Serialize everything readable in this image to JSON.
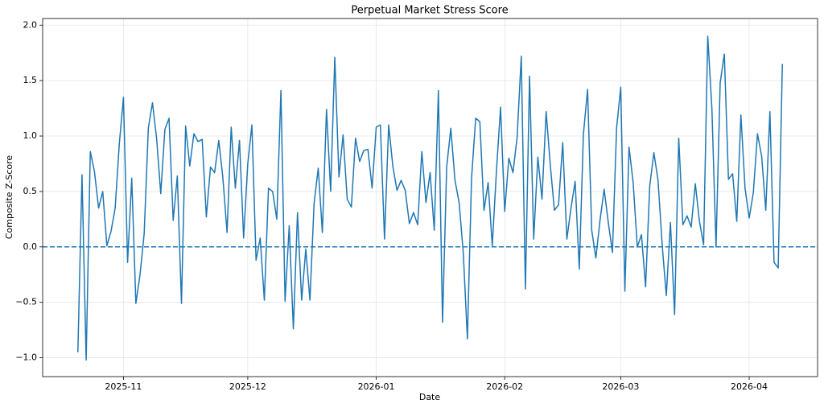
{
  "chart_data": {
    "type": "line",
    "title": "Perpetual Market Stress Score",
    "xlabel": "Date",
    "ylabel": "Composite Z-Score",
    "color": "#1f77b4",
    "values": [
      -0.95,
      0.65,
      -1.02,
      0.86,
      0.68,
      0.35,
      0.5,
      0.01,
      0.14,
      0.35,
      0.93,
      1.35,
      -0.14,
      0.62,
      -0.51,
      -0.25,
      0.12,
      1.07,
      1.3,
      0.98,
      0.48,
      1.06,
      1.16,
      0.24,
      0.64,
      -0.51,
      1.09,
      0.73,
      1.02,
      0.95,
      0.97,
      0.27,
      0.72,
      0.67,
      0.96,
      0.62,
      0.13,
      1.08,
      0.53,
      0.96,
      0.08,
      0.75,
      1.1,
      -0.12,
      0.08,
      -0.48,
      0.53,
      0.5,
      0.25,
      1.41,
      -0.49,
      0.19,
      -0.74,
      0.31,
      -0.48,
      -0.02,
      -0.48,
      0.39,
      0.71,
      0.13,
      1.24,
      0.5,
      1.71,
      0.63,
      1.01,
      0.43,
      0.36,
      0.98,
      0.77,
      0.87,
      0.88,
      0.53,
      1.08,
      1.1,
      0.07,
      1.1,
      0.73,
      0.51,
      0.6,
      0.51,
      0.21,
      0.31,
      0.2,
      0.86,
      0.4,
      0.67,
      0.15,
      1.41,
      -0.68,
      0.72,
      1.07,
      0.6,
      0.4,
      -0.05,
      -0.83,
      0.62,
      1.16,
      1.13,
      0.33,
      0.58,
      0.01,
      0.68,
      1.26,
      0.32,
      0.8,
      0.67,
      0.99,
      1.72,
      -0.38,
      1.54,
      0.07,
      0.81,
      0.43,
      1.22,
      0.74,
      0.33,
      0.38,
      0.94,
      0.07,
      0.35,
      0.59,
      -0.2,
      1.02,
      1.42,
      0.15,
      -0.1,
      0.24,
      0.52,
      0.22,
      -0.05,
      1.07,
      1.44,
      -0.4,
      0.9,
      0.58,
      0.0,
      0.11,
      -0.36,
      0.55,
      0.85,
      0.6,
      0.02,
      -0.44,
      0.22,
      -0.61,
      0.98,
      0.2,
      0.28,
      0.18,
      0.57,
      0.23,
      0.02,
      1.9,
      1.25,
      0.0,
      1.48,
      1.74,
      0.61,
      0.66,
      0.23,
      1.19,
      0.53,
      0.26,
      0.49,
      1.02,
      0.82,
      0.33,
      1.22,
      -0.14,
      -0.19,
      1.65
    ],
    "xlim": [
      -8.5,
      178.5
    ],
    "xticks": [
      {
        "value": 11,
        "label": "2025-11"
      },
      {
        "value": 41,
        "label": "2025-12"
      },
      {
        "value": 72,
        "label": "2026-01"
      },
      {
        "value": 103,
        "label": "2026-02"
      },
      {
        "value": 131,
        "label": "2026-03"
      },
      {
        "value": 162,
        "label": "2026-04"
      }
    ],
    "ylim": [
      -1.17,
      2.06
    ],
    "yticks": [
      {
        "value": -1,
        "label": "−1.0"
      },
      {
        "value": -0.5,
        "label": "−0.5"
      },
      {
        "value": 0,
        "label": "0.0"
      },
      {
        "value": 0.5,
        "label": "0.5"
      },
      {
        "value": 1,
        "label": "1.0"
      },
      {
        "value": 1.5,
        "label": "1.5"
      },
      {
        "value": 2,
        "label": "2.0"
      }
    ],
    "hline": {
      "y": 0,
      "style": "dashed"
    },
    "grid": true
  }
}
